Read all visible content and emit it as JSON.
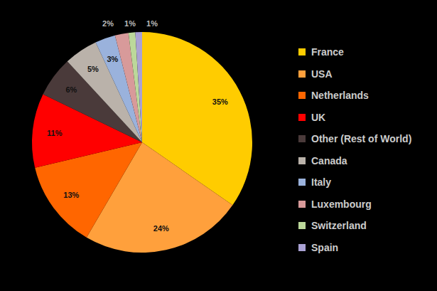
{
  "chart_data": {
    "type": "pie",
    "categories": [
      "France",
      "USA",
      "Netherlands",
      "UK",
      "Other (Rest of World)",
      "Canada",
      "Italy",
      "Luxembourg",
      "Switzerland",
      "Spain"
    ],
    "values": [
      35,
      24,
      13,
      11,
      6,
      5,
      3,
      2,
      1,
      1
    ],
    "value_labels": [
      "35%",
      "24%",
      "13%",
      "11%",
      "6%",
      "5%",
      "3%",
      "2%",
      "1%",
      "1%"
    ],
    "colors": [
      "#ffcc00",
      "#ffa03c",
      "#ff6600",
      "#ff0000",
      "#4a3a3a",
      "#bab2aa",
      "#9ab2dc",
      "#d89a9a",
      "#bcd89a",
      "#aaa2d4"
    ],
    "data_labels": true,
    "legend": "right"
  }
}
